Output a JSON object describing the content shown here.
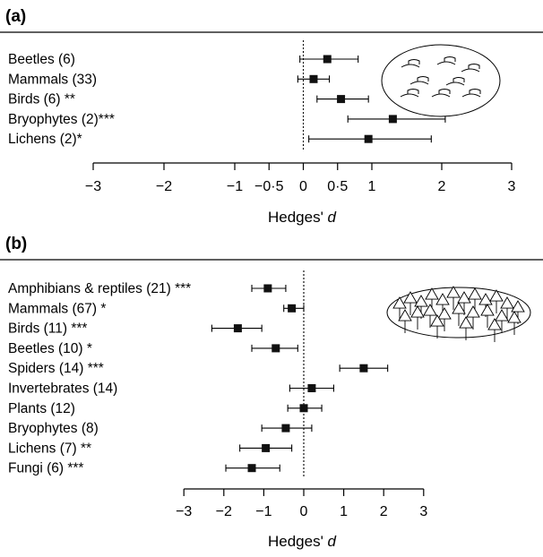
{
  "chart_data": [
    {
      "type": "forest",
      "panel_label": "(a)",
      "xlabel": "Hedges' d",
      "xticks": [
        "−3",
        "−2",
        "−1",
        "−0·5",
        "0",
        "0·5",
        "1",
        "2",
        "3"
      ],
      "xtick_values": [
        -3,
        -2,
        -1,
        -0.5,
        0,
        0.5,
        1,
        2,
        3
      ],
      "xscale": "piecewise: 0.5-unit spacing between -1 and 1",
      "reference_line": 0,
      "icon": "forest-stumps-icon",
      "categories": [
        "Beetles (6)",
        "Mammals (33)",
        "Birds (6) **",
        "Bryophytes (2)***",
        "Lichens (2)*"
      ],
      "estimates": [
        0.35,
        0.15,
        0.55,
        1.3,
        0.95
      ],
      "ci_lower": [
        -0.05,
        -0.08,
        0.2,
        0.65,
        0.08
      ],
      "ci_upper": [
        0.8,
        0.38,
        0.95,
        2.05,
        1.85
      ]
    },
    {
      "type": "forest",
      "panel_label": "(b)",
      "xlabel": "Hedges' d",
      "xticks": [
        "−3",
        "−2",
        "−1",
        "0",
        "1",
        "2",
        "3"
      ],
      "xtick_values": [
        -3,
        -2,
        -1,
        0,
        1,
        2,
        3
      ],
      "reference_line": 0,
      "icon": "mature-forest-icon",
      "categories": [
        "Amphibians & reptiles (21) ***",
        "Mammals (67) *",
        "Birds (11) ***",
        "Beetles (10) *",
        "Spiders (14) ***",
        "Invertebrates (14)",
        "Plants (12)",
        "Bryophytes (8)",
        "Lichens (7) **",
        "Fungi (6) ***"
      ],
      "estimates": [
        -0.9,
        -0.3,
        -1.65,
        -0.7,
        1.5,
        0.2,
        0.0,
        -0.45,
        -0.95,
        -1.3
      ],
      "ci_lower": [
        -1.3,
        -0.5,
        -2.3,
        -1.3,
        0.9,
        -0.35,
        -0.4,
        -1.05,
        -1.6,
        -1.95
      ],
      "ci_upper": [
        -0.45,
        0.0,
        -1.05,
        -0.15,
        2.1,
        0.75,
        0.45,
        0.2,
        -0.3,
        -0.6
      ]
    }
  ]
}
